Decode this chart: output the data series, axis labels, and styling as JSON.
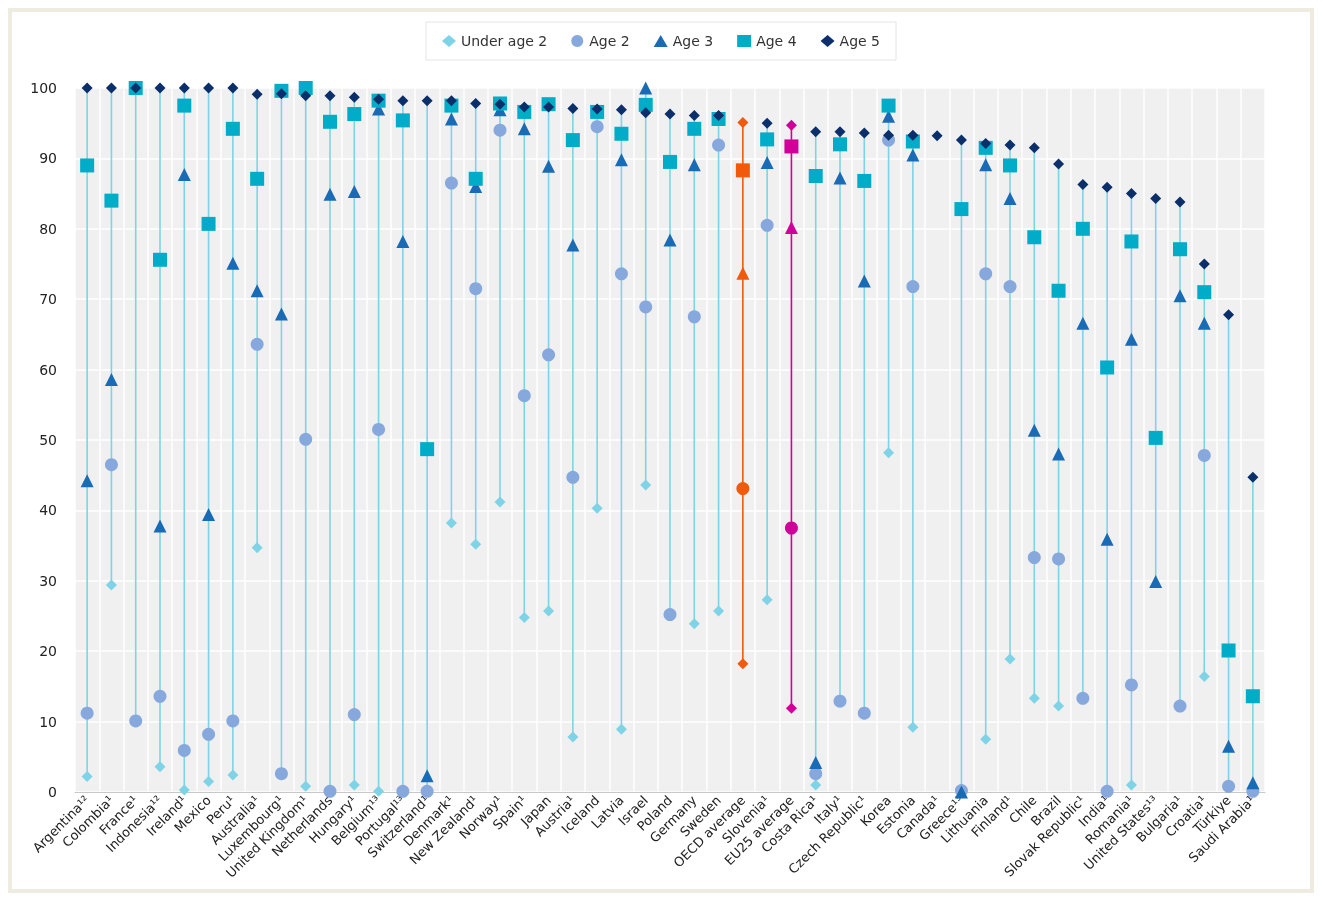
{
  "chart_data": {
    "type": "scatter",
    "categories": [
      "Argentina¹²",
      "Colombia¹",
      "France¹",
      "Indonesia¹²",
      "Ireland¹",
      "Mexico",
      "Peru¹",
      "Australia¹",
      "Luxembourg¹",
      "United Kingdom¹",
      "Netherlands",
      "Hungary¹",
      "Belgium¹³",
      "Portugal¹³",
      "Switzerland¹",
      "Denmark¹",
      "New Zealand¹",
      "Norway¹",
      "Spain¹",
      "Japan",
      "Austria¹",
      "Iceland",
      "Latvia",
      "Israel",
      "Poland",
      "Germany",
      "Sweden",
      "OECD average",
      "Slovenia¹",
      "EU25 average",
      "Costa Rica¹",
      "Italy¹",
      "Czech Republic¹",
      "Korea",
      "Estonia",
      "Canada¹",
      "Greece¹³",
      "Lithuania",
      "Finland¹",
      "Chile",
      "Brazil",
      "Slovak Republic¹",
      "India¹",
      "Romania¹",
      "United States¹³",
      "Bulgaria¹",
      "Croatia¹",
      "Türkiye",
      "Saudi Arabia¹"
    ],
    "series": [
      {
        "name": "Under age 2",
        "marker": "diamond",
        "color": "#7fd3e6",
        "colors": [
          "#7fd3e6",
          "#7fd3e6",
          "#7fd3e6",
          "#7fd3e6",
          "#7fd3e6",
          "#7fd3e6",
          "#7fd3e6",
          "#7fd3e6",
          "#7fd3e6",
          "#7fd3e6",
          "#7fd3e6",
          "#7fd3e6",
          "#7fd3e6",
          "#7fd3e6",
          "#7fd3e6",
          "#7fd3e6",
          "#7fd3e6",
          "#7fd3e6",
          "#7fd3e6",
          "#7fd3e6",
          "#7fd3e6",
          "#7fd3e6",
          "#7fd3e6",
          "#7fd3e6",
          "#7fd3e6",
          "#7fd3e6",
          "#7fd3e6",
          "#f05a0a",
          "#7fd3e6",
          "#d2009a",
          "#7fd3e6",
          "#7fd3e6",
          "#7fd3e6",
          "#7fd3e6",
          "#7fd3e6",
          "#7fd3e6",
          "#7fd3e6",
          "#7fd3e6",
          "#7fd3e6",
          "#7fd3e6",
          "#7fd3e6",
          "#7fd3e6",
          "#7fd3e6",
          "#7fd3e6",
          "#7fd3e6",
          "#7fd3e6",
          "#7fd3e6",
          "#7fd3e6",
          "#7fd3e6"
        ],
        "values": [
          2.2,
          29.4,
          null,
          3.6,
          0.3,
          1.5,
          2.4,
          34.7,
          null,
          0.8,
          null,
          1.0,
          0.1,
          null,
          null,
          38.2,
          35.2,
          41.2,
          24.8,
          25.7,
          7.8,
          40.3,
          8.9,
          43.6,
          null,
          23.9,
          25.7,
          18.2,
          27.3,
          11.9,
          1.0,
          null,
          null,
          48.2,
          9.2,
          null,
          null,
          7.5,
          18.9,
          13.3,
          12.2,
          null,
          null,
          1.0,
          null,
          null,
          16.4,
          null,
          null
        ]
      },
      {
        "name": "Age 2",
        "marker": "circle",
        "color": "#86a8dc",
        "colors": [
          "#86a8dc",
          "#86a8dc",
          "#86a8dc",
          "#86a8dc",
          "#86a8dc",
          "#86a8dc",
          "#86a8dc",
          "#86a8dc",
          "#86a8dc",
          "#86a8dc",
          "#86a8dc",
          "#86a8dc",
          "#86a8dc",
          "#86a8dc",
          "#86a8dc",
          "#86a8dc",
          "#86a8dc",
          "#86a8dc",
          "#86a8dc",
          "#86a8dc",
          "#86a8dc",
          "#86a8dc",
          "#86a8dc",
          "#86a8dc",
          "#86a8dc",
          "#86a8dc",
          "#86a8dc",
          "#f05a0a",
          "#86a8dc",
          "#d2009a",
          "#86a8dc",
          "#86a8dc",
          "#86a8dc",
          "#86a8dc",
          "#86a8dc",
          "#86a8dc",
          "#86a8dc",
          "#86a8dc",
          "#86a8dc",
          "#86a8dc",
          "#86a8dc",
          "#86a8dc",
          "#86a8dc",
          "#86a8dc",
          "#86a8dc",
          "#86a8dc",
          "#86a8dc",
          "#86a8dc",
          "#86a8dc"
        ],
        "values": [
          11.2,
          46.5,
          10.1,
          13.6,
          5.9,
          8.2,
          10.1,
          63.6,
          2.6,
          50.1,
          0.1,
          11.0,
          51.5,
          0.1,
          0.1,
          86.5,
          71.5,
          94.0,
          56.3,
          62.1,
          44.7,
          94.5,
          73.6,
          68.9,
          25.2,
          67.5,
          91.9,
          43.1,
          80.5,
          37.5,
          2.6,
          12.9,
          11.2,
          92.6,
          71.8,
          null,
          0.2,
          73.6,
          71.8,
          33.3,
          33.1,
          13.3,
          0.1,
          15.2,
          null,
          12.2,
          47.8,
          0.8,
          0.1
        ]
      },
      {
        "name": "Age 3",
        "marker": "triangle",
        "color": "#1a6bb5",
        "colors": [
          "#1a6bb5",
          "#1a6bb5",
          "#1a6bb5",
          "#1a6bb5",
          "#1a6bb5",
          "#1a6bb5",
          "#1a6bb5",
          "#1a6bb5",
          "#1a6bb5",
          "#1a6bb5",
          "#1a6bb5",
          "#1a6bb5",
          "#1a6bb5",
          "#1a6bb5",
          "#1a6bb5",
          "#1a6bb5",
          "#1a6bb5",
          "#1a6bb5",
          "#1a6bb5",
          "#1a6bb5",
          "#1a6bb5",
          "#1a6bb5",
          "#1a6bb5",
          "#1a6bb5",
          "#1a6bb5",
          "#1a6bb5",
          "#1a6bb5",
          "#f05a0a",
          "#1a6bb5",
          "#d2009a",
          "#1a6bb5",
          "#1a6bb5",
          "#1a6bb5",
          "#1a6bb5",
          "#1a6bb5",
          "#1a6bb5",
          "#1a6bb5",
          "#1a6bb5",
          "#1a6bb5",
          "#1a6bb5",
          "#1a6bb5",
          "#1a6bb5",
          "#1a6bb5",
          "#1a6bb5",
          "#1a6bb5",
          "#1a6bb5",
          "#1a6bb5",
          "#1a6bb5",
          "#1a6bb5"
        ],
        "values": [
          44.2,
          58.6,
          null,
          37.8,
          87.7,
          39.4,
          75.1,
          71.2,
          67.9,
          null,
          84.9,
          85.3,
          97.0,
          78.2,
          2.3,
          95.6,
          86.0,
          96.9,
          94.2,
          88.9,
          77.7,
          null,
          89.8,
          100,
          78.4,
          89.1,
          null,
          73.7,
          89.4,
          80.2,
          4.2,
          87.2,
          72.6,
          96.0,
          90.5,
          null,
          0,
          89.1,
          84.3,
          51.4,
          48.0,
          66.6,
          35.9,
          64.3,
          29.9,
          70.5,
          66.6,
          6.5,
          1.3
        ]
      },
      {
        "name": "Age 4",
        "marker": "square",
        "color": "#00acc8",
        "colors": [
          "#00acc8",
          "#00acc8",
          "#00acc8",
          "#00acc8",
          "#00acc8",
          "#00acc8",
          "#00acc8",
          "#00acc8",
          "#00acc8",
          "#00acc8",
          "#00acc8",
          "#00acc8",
          "#00acc8",
          "#00acc8",
          "#00acc8",
          "#00acc8",
          "#00acc8",
          "#00acc8",
          "#00acc8",
          "#00acc8",
          "#00acc8",
          "#00acc8",
          "#00acc8",
          "#00acc8",
          "#00acc8",
          "#00acc8",
          "#00acc8",
          "#f05a0a",
          "#00acc8",
          "#d2009a",
          "#00acc8",
          "#00acc8",
          "#00acc8",
          "#00acc8",
          "#00acc8",
          "#00acc8",
          "#00acc8",
          "#00acc8",
          "#00acc8",
          "#00acc8",
          "#00acc8",
          "#00acc8",
          "#00acc8",
          "#00acc8",
          "#00acc8",
          "#00acc8",
          "#00acc8",
          "#00acc8",
          "#00acc8"
        ],
        "values": [
          89.0,
          84.0,
          100,
          75.6,
          97.5,
          80.7,
          94.2,
          87.1,
          99.6,
          100,
          95.2,
          96.3,
          98.2,
          95.4,
          48.7,
          97.5,
          87.1,
          97.8,
          96.6,
          97.7,
          92.6,
          96.6,
          93.5,
          97.6,
          89.5,
          94.2,
          95.6,
          88.3,
          92.7,
          91.7,
          87.5,
          92.0,
          86.8,
          97.5,
          92.4,
          null,
          82.8,
          91.5,
          89.0,
          78.8,
          71.2,
          80.0,
          60.3,
          78.2,
          50.3,
          77.1,
          71.0,
          20.1,
          13.6
        ]
      },
      {
        "name": "Age 5",
        "marker": "diamond",
        "color": "#0b2f6a",
        "colors": [
          "#0b2f6a",
          "#0b2f6a",
          "#0b2f6a",
          "#0b2f6a",
          "#0b2f6a",
          "#0b2f6a",
          "#0b2f6a",
          "#0b2f6a",
          "#0b2f6a",
          "#0b2f6a",
          "#0b2f6a",
          "#0b2f6a",
          "#0b2f6a",
          "#0b2f6a",
          "#0b2f6a",
          "#0b2f6a",
          "#0b2f6a",
          "#0b2f6a",
          "#0b2f6a",
          "#0b2f6a",
          "#0b2f6a",
          "#0b2f6a",
          "#0b2f6a",
          "#0b2f6a",
          "#0b2f6a",
          "#0b2f6a",
          "#0b2f6a",
          "#f05a0a",
          "#0b2f6a",
          "#d2009a",
          "#0b2f6a",
          "#0b2f6a",
          "#0b2f6a",
          "#0b2f6a",
          "#0b2f6a",
          "#0b2f6a",
          "#0b2f6a",
          "#0b2f6a",
          "#0b2f6a",
          "#0b2f6a",
          "#0b2f6a",
          "#0b2f6a",
          "#0b2f6a",
          "#0b2f6a",
          "#0b2f6a",
          "#0b2f6a",
          "#0b2f6a",
          "#0b2f6a",
          "#0b2f6a"
        ],
        "values": [
          100,
          100,
          100,
          100,
          100,
          100,
          100,
          99.1,
          99.2,
          98.9,
          98.9,
          98.7,
          98.4,
          98.2,
          98.2,
          98.2,
          97.8,
          97.7,
          97.3,
          97.3,
          97.1,
          97.0,
          96.9,
          96.5,
          96.3,
          96.1,
          96.1,
          95.1,
          95.0,
          94.7,
          93.8,
          93.8,
          93.6,
          93.3,
          93.3,
          93.2,
          92.6,
          92.1,
          91.9,
          91.5,
          89.2,
          86.3,
          85.9,
          85.0,
          84.3,
          83.8,
          75.0,
          67.8,
          44.7
        ]
      }
    ],
    "ylim": [
      0,
      100
    ],
    "yticks": [
      0,
      10,
      20,
      30,
      40,
      50,
      60,
      70,
      80,
      90,
      100
    ],
    "grid": true,
    "legend": "top"
  }
}
